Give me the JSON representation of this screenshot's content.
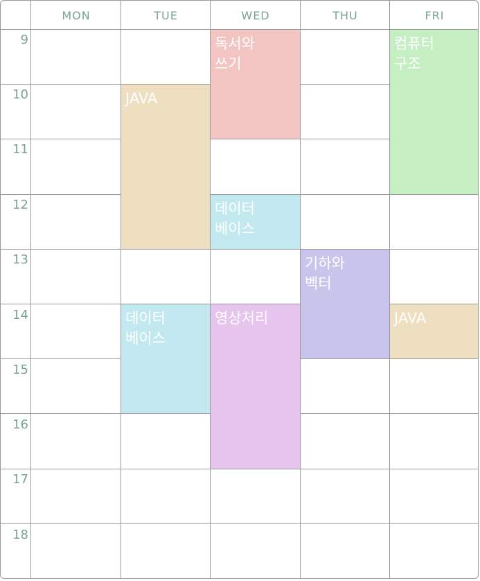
{
  "days": [
    "MON",
    "TUE",
    "WED",
    "THU",
    "FRI"
  ],
  "hours": [
    "9",
    "10",
    "11",
    "12",
    "13",
    "14",
    "15",
    "16",
    "17",
    "18"
  ],
  "courses": [
    {
      "name": "독서와\n쓰기",
      "day": 2,
      "start": 9,
      "end": 11,
      "color": "#f2c4c2"
    },
    {
      "name": "컴퓨터\n구조",
      "day": 4,
      "start": 9,
      "end": 12,
      "color": "#c6eec3"
    },
    {
      "name": "JAVA",
      "day": 1,
      "start": 10,
      "end": 13,
      "color": "#eedfc0"
    },
    {
      "name": "데이터\n베이스",
      "day": 2,
      "start": 12,
      "end": 13,
      "color": "#c2e9ef"
    },
    {
      "name": "기하와\n벡터",
      "day": 3,
      "start": 13,
      "end": 15,
      "color": "#c8c4ec"
    },
    {
      "name": "데이터\n베이스",
      "day": 1,
      "start": 14,
      "end": 16,
      "color": "#c2e9ef"
    },
    {
      "name": "영상처리",
      "day": 2,
      "start": 14,
      "end": 17,
      "color": "#e6c4ee"
    },
    {
      "name": "JAVA",
      "day": 4,
      "start": 14,
      "end": 15,
      "color": "#eedfc0"
    }
  ]
}
